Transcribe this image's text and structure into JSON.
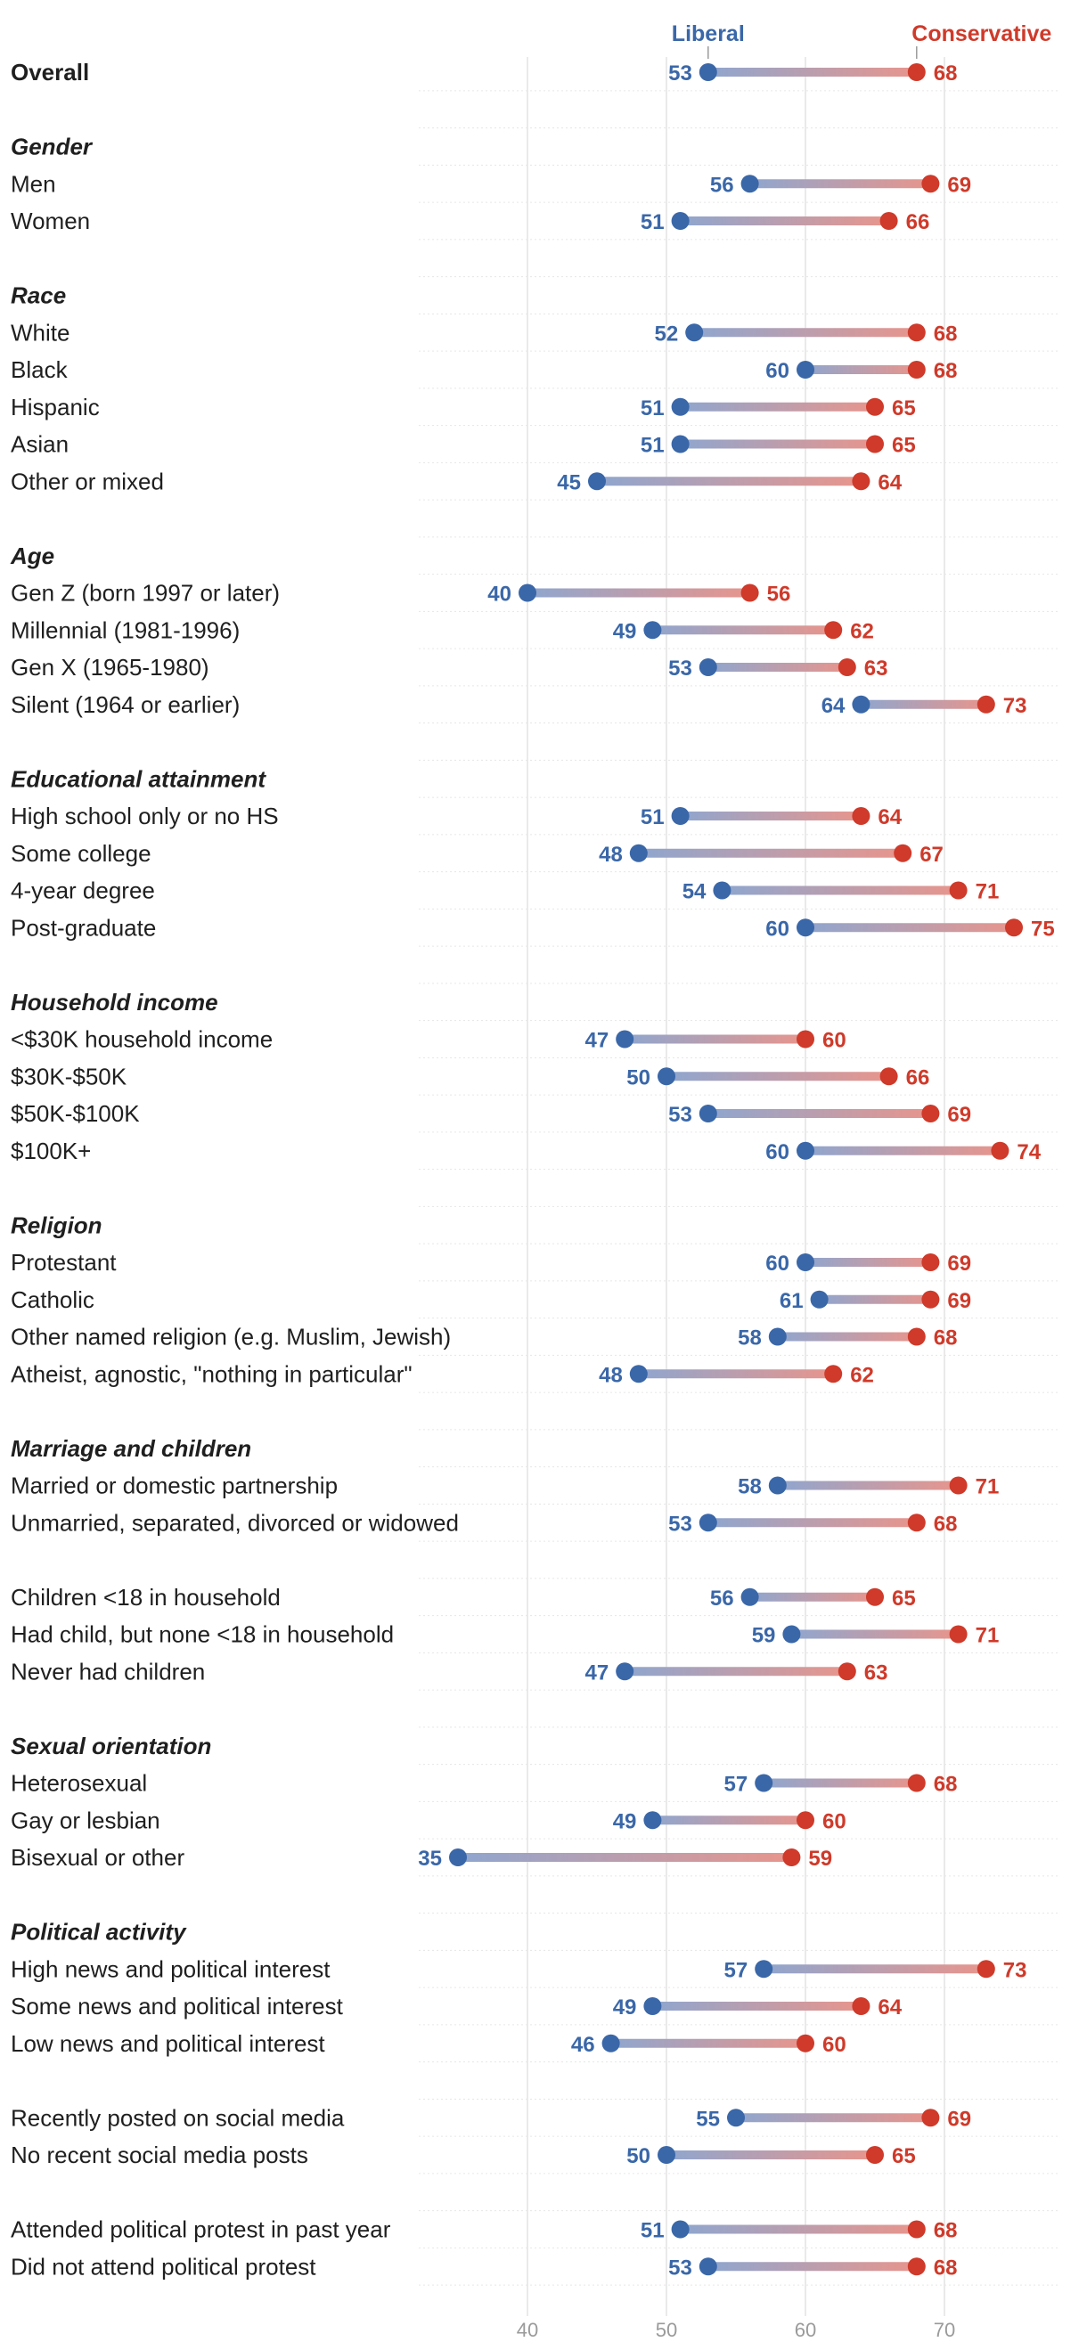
{
  "legend": {
    "liberal": "Liberal",
    "conservative": "Conservative"
  },
  "colors": {
    "liberal": "#3a67a8",
    "conservative": "#cf3a2a"
  },
  "chart_data": {
    "type": "dumbbell",
    "title": "",
    "xlim": [
      30,
      77
    ],
    "xticks": [
      40,
      50,
      60,
      70
    ],
    "series": [
      {
        "name": "Liberal",
        "key": "lib"
      },
      {
        "name": "Conservative",
        "key": "con"
      }
    ],
    "rows": [
      {
        "kind": "overall",
        "label": "Overall",
        "lib": 53,
        "con": 68
      },
      {
        "kind": "spacer"
      },
      {
        "kind": "category",
        "label": "Gender"
      },
      {
        "kind": "data",
        "label": "Men",
        "lib": 56,
        "con": 69
      },
      {
        "kind": "data",
        "label": "Women",
        "lib": 51,
        "con": 66
      },
      {
        "kind": "spacer"
      },
      {
        "kind": "category",
        "label": "Race"
      },
      {
        "kind": "data",
        "label": "White",
        "lib": 52,
        "con": 68
      },
      {
        "kind": "data",
        "label": "Black",
        "lib": 60,
        "con": 68
      },
      {
        "kind": "data",
        "label": "Hispanic",
        "lib": 51,
        "con": 65
      },
      {
        "kind": "data",
        "label": "Asian",
        "lib": 51,
        "con": 65
      },
      {
        "kind": "data",
        "label": "Other or mixed",
        "lib": 45,
        "con": 64
      },
      {
        "kind": "spacer"
      },
      {
        "kind": "category",
        "label": "Age"
      },
      {
        "kind": "data",
        "label": "Gen Z (born 1997 or later)",
        "lib": 40,
        "con": 56
      },
      {
        "kind": "data",
        "label": "Millennial (1981-1996)",
        "lib": 49,
        "con": 62
      },
      {
        "kind": "data",
        "label": "Gen X (1965-1980)",
        "lib": 53,
        "con": 63
      },
      {
        "kind": "data",
        "label": "Silent (1964 or earlier)",
        "lib": 64,
        "con": 73
      },
      {
        "kind": "spacer"
      },
      {
        "kind": "category",
        "label": "Educational attainment"
      },
      {
        "kind": "data",
        "label": "High school only or no HS",
        "lib": 51,
        "con": 64
      },
      {
        "kind": "data",
        "label": "Some college",
        "lib": 48,
        "con": 67
      },
      {
        "kind": "data",
        "label": "4-year degree",
        "lib": 54,
        "con": 71
      },
      {
        "kind": "data",
        "label": "Post-graduate",
        "lib": 60,
        "con": 75
      },
      {
        "kind": "spacer"
      },
      {
        "kind": "category",
        "label": "Household income"
      },
      {
        "kind": "data",
        "label": "<$30K household income",
        "lib": 47,
        "con": 60
      },
      {
        "kind": "data",
        "label": "$30K-$50K",
        "lib": 50,
        "con": 66
      },
      {
        "kind": "data",
        "label": "$50K-$100K",
        "lib": 53,
        "con": 69
      },
      {
        "kind": "data",
        "label": "$100K+",
        "lib": 60,
        "con": 74
      },
      {
        "kind": "spacer"
      },
      {
        "kind": "category",
        "label": "Religion"
      },
      {
        "kind": "data",
        "label": "Protestant",
        "lib": 60,
        "con": 69
      },
      {
        "kind": "data",
        "label": "Catholic",
        "lib": 61,
        "con": 69
      },
      {
        "kind": "data",
        "label": "Other named religion (e.g. Muslim, Jewish)",
        "lib": 58,
        "con": 68
      },
      {
        "kind": "data",
        "label": "Atheist, agnostic, \"nothing in particular\"",
        "lib": 48,
        "con": 62
      },
      {
        "kind": "spacer"
      },
      {
        "kind": "category",
        "label": "Marriage and children"
      },
      {
        "kind": "data",
        "label": "Married or domestic partnership",
        "lib": 58,
        "con": 71
      },
      {
        "kind": "data",
        "label": "Unmarried, separated, divorced or widowed",
        "lib": 53,
        "con": 68
      },
      {
        "kind": "spacer"
      },
      {
        "kind": "data",
        "label": "Children <18 in household",
        "lib": 56,
        "con": 65
      },
      {
        "kind": "data",
        "label": "Had child, but none <18 in household",
        "lib": 59,
        "con": 71
      },
      {
        "kind": "data",
        "label": "Never had children",
        "lib": 47,
        "con": 63
      },
      {
        "kind": "spacer"
      },
      {
        "kind": "category",
        "label": "Sexual orientation"
      },
      {
        "kind": "data",
        "label": "Heterosexual",
        "lib": 57,
        "con": 68
      },
      {
        "kind": "data",
        "label": "Gay or lesbian",
        "lib": 49,
        "con": 60
      },
      {
        "kind": "data",
        "label": "Bisexual or other",
        "lib": 35,
        "con": 59
      },
      {
        "kind": "spacer"
      },
      {
        "kind": "category",
        "label": "Political activity"
      },
      {
        "kind": "data",
        "label": "High news and political interest",
        "lib": 57,
        "con": 73
      },
      {
        "kind": "data",
        "label": "Some news and political interest",
        "lib": 49,
        "con": 64
      },
      {
        "kind": "data",
        "label": "Low news and political interest",
        "lib": 46,
        "con": 60
      },
      {
        "kind": "spacer"
      },
      {
        "kind": "data",
        "label": "Recently posted on social media",
        "lib": 55,
        "con": 69
      },
      {
        "kind": "data",
        "label": "No recent social media posts",
        "lib": 50,
        "con": 65
      },
      {
        "kind": "spacer"
      },
      {
        "kind": "data",
        "label": "Attended political protest in past year",
        "lib": 51,
        "con": 68
      },
      {
        "kind": "data",
        "label": "Did not attend political protest",
        "lib": 53,
        "con": 68
      }
    ]
  }
}
